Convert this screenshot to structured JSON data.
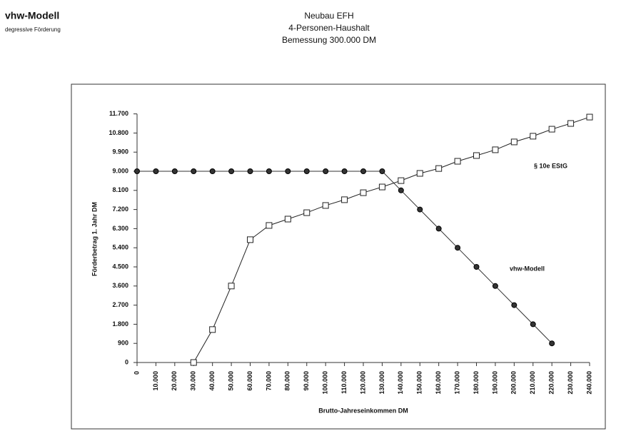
{
  "header": {
    "title": "vhw-Modell",
    "subtitle": "degressive Förderung"
  },
  "chart_data": {
    "type": "line",
    "title": [
      "Neubau EFH",
      "4-Personen-Haushalt",
      "Bemessung 300.000 DM"
    ],
    "x_label": "Brutto-Jahreseinkommen DM",
    "y_label": "Förderbetrag 1. Jahr DM",
    "x": [
      0,
      10000,
      20000,
      30000,
      40000,
      50000,
      60000,
      70000,
      80000,
      90000,
      100000,
      110000,
      120000,
      130000,
      140000,
      150000,
      160000,
      170000,
      180000,
      190000,
      200000,
      210000,
      220000,
      230000,
      240000
    ],
    "series": [
      {
        "name": "vhw-Modell",
        "color": "#333333",
        "marker": "circle",
        "values": [
          9000,
          9000,
          9000,
          9000,
          9000,
          9000,
          9000,
          9000,
          9000,
          9000,
          9000,
          9000,
          9000,
          9000,
          8100,
          7200,
          6300,
          5400,
          4500,
          3600,
          2700,
          1800,
          900,
          null,
          null
        ]
      },
      {
        "name": "§ 10e EStG",
        "color": "#222222",
        "marker": "square",
        "values": [
          null,
          null,
          null,
          0,
          1550,
          3600,
          5780,
          6450,
          6750,
          7050,
          7390,
          7660,
          7990,
          8260,
          8560,
          8900,
          9130,
          9470,
          9740,
          10010,
          10380,
          10650,
          10980,
          11250,
          11550
        ]
      }
    ],
    "xlim": [
      0,
      240000
    ],
    "ylim": [
      0,
      11700
    ],
    "xticks": [
      0,
      {
        "value": 10000,
        "label": "10.000"
      },
      {
        "value": 20000,
        "label": "20.000"
      },
      {
        "value": 30000,
        "label": "30.000"
      },
      {
        "value": 40000,
        "label": "40.000"
      },
      {
        "value": 50000,
        "label": "50.000"
      },
      {
        "value": 60000,
        "label": "60.000"
      },
      {
        "value": 70000,
        "label": "70.000"
      },
      {
        "value": 80000,
        "label": "80.000"
      },
      {
        "value": 90000,
        "label": "90.000"
      },
      {
        "value": 100000,
        "label": "100.000"
      },
      {
        "value": 110000,
        "label": "110.000"
      },
      {
        "value": 120000,
        "label": "120.000"
      },
      {
        "value": 130000,
        "label": "130.000"
      },
      {
        "value": 140000,
        "label": "140.000"
      },
      {
        "value": 150000,
        "label": "150.000"
      },
      {
        "value": 160000,
        "label": "160.000"
      },
      {
        "value": 170000,
        "label": "170.000"
      },
      {
        "value": 180000,
        "label": "180.000"
      },
      {
        "value": 190000,
        "label": "190.000"
      },
      {
        "value": 200000,
        "label": "200.000"
      },
      {
        "value": 210000,
        "label": "210.000"
      },
      {
        "value": 220000,
        "label": "220.000"
      },
      {
        "value": 230000,
        "label": "230.000"
      },
      {
        "value": 240000,
        "label": "240.000"
      }
    ],
    "yticks": [
      0,
      900,
      {
        "value": 1800,
        "label": "1.800"
      },
      {
        "value": 2700,
        "label": "2.700"
      },
      {
        "value": 3600,
        "label": "3.600"
      },
      {
        "value": 4500,
        "label": "4.500"
      },
      {
        "value": 5400,
        "label": "5.400"
      },
      {
        "value": 6300,
        "label": "6.300"
      },
      {
        "value": 7200,
        "label": "7.200"
      },
      {
        "value": 8100,
        "label": "8.100"
      },
      {
        "value": 9000,
        "label": "9.000"
      },
      {
        "value": 9900,
        "label": "9.900"
      },
      {
        "value": 10800,
        "label": "10.800"
      },
      {
        "value": 11700,
        "label": "11.700"
      }
    ],
    "grid": false
  }
}
